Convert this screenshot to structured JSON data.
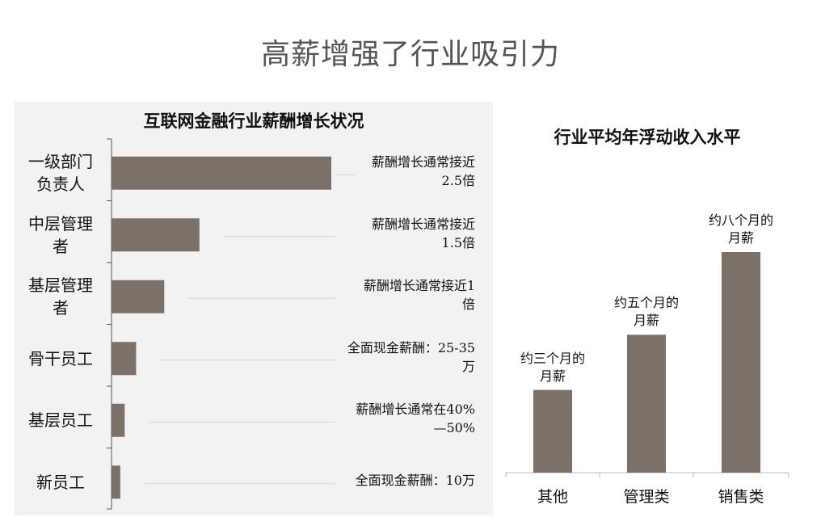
{
  "page": {
    "title": "高薪增强了行业吸引力"
  },
  "chart_data": [
    {
      "type": "bar",
      "orientation": "horizontal",
      "title": "互联网金融行业薪酬增长状况",
      "categories": [
        "一级部门\n负责人",
        "中层管理\n者",
        "基层管理\n者",
        "骨干员工",
        "基层员工",
        "新员工"
      ],
      "values": [
        2.5,
        1.0,
        0.6,
        0.28,
        0.15,
        0.1
      ],
      "annotations": [
        "薪酬增长通常接近\n2.5倍",
        "薪酬增长通常接近\n1.5倍",
        "薪酬增长通常接近1\n倍",
        "全面现金薪酬：25-35\n万",
        "薪酬增长通常在40%\n—50%",
        "全面现金薪酬：10万"
      ],
      "xlim": [
        0,
        2.5
      ],
      "grid": false,
      "colors": {
        "bar": "#7b7169",
        "background": "#f2f2f2"
      }
    },
    {
      "type": "bar",
      "title": "行业平均年浮动收入水平",
      "categories": [
        "其他",
        "管理类",
        "销售类"
      ],
      "values": [
        3,
        5,
        8
      ],
      "data_labels": [
        "约三个月的\n月薪",
        "约五个月的\n月薪",
        "约八个月的\n月薪"
      ],
      "ylim": [
        0,
        8
      ],
      "grid": false,
      "colors": {
        "bar": "#7b7169"
      }
    }
  ]
}
